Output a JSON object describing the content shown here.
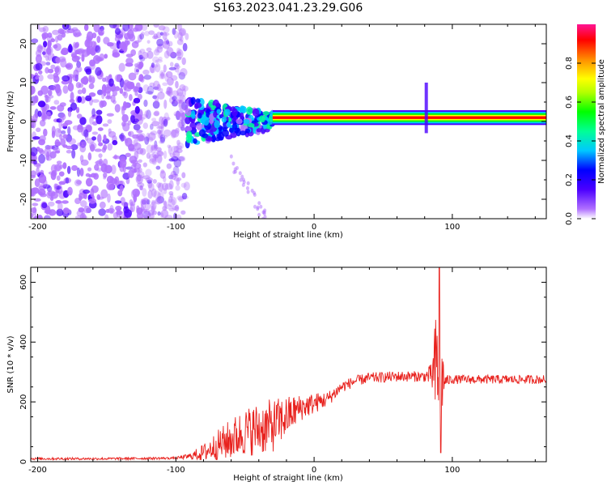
{
  "title": "S163.2023.041.23.29.G06",
  "chart_data": [
    {
      "type": "heatmap",
      "title": "S163.2023.041.23.29.G06",
      "xlabel": "Height of straight line (km)",
      "ylabel": "Frequency (Hz)",
      "xlim": [
        -205,
        168
      ],
      "ylim": [
        -25,
        25
      ],
      "xticks": [
        "-200",
        "-100",
        "0",
        "100"
      ],
      "yticks": [
        "-20",
        "-10",
        "0",
        "10",
        "20"
      ],
      "colorbar": {
        "label": "Normalized spectral amplitude",
        "range": [
          0,
          1
        ],
        "ticks": [
          "0.0",
          "0.2",
          "0.4",
          "0.6",
          "0.8"
        ],
        "colors": [
          "#ffffff",
          "#b070ff",
          "#4b00ff",
          "#0000ff",
          "#00c8ff",
          "#00ff96",
          "#00ff00",
          "#b4ff00",
          "#ffff00",
          "#ff8c00",
          "#ff0000",
          "#ff1493"
        ]
      },
      "regions": [
        {
          "name": "noise",
          "x_range": [
            -205,
            -92
          ],
          "f_range": [
            -25,
            25
          ],
          "amplitude": 0.15
        },
        {
          "name": "transition",
          "x_range": [
            -92,
            -30
          ],
          "f_range": [
            -6,
            6
          ],
          "amplitude": 0.3
        },
        {
          "name": "signal",
          "x_range": [
            -30,
            168
          ],
          "f_center": 1,
          "f_halfwidth": 1,
          "amplitude": 0.85
        }
      ],
      "grid": false
    },
    {
      "type": "line",
      "xlabel": "Height of straight line (km)",
      "ylabel": "SNR (10 * v/v)",
      "xlim": [
        -205,
        168
      ],
      "ylim": [
        0,
        650
      ],
      "xticks": [
        "-200",
        "-100",
        "0",
        "100"
      ],
      "yticks": [
        "0",
        "200",
        "400",
        "600"
      ],
      "color": "#e8211d",
      "series_envelope": {
        "x": [
          -205,
          -150,
          -100,
          -90,
          -80,
          -70,
          -60,
          -50,
          -40,
          -30,
          -20,
          -10,
          0,
          10,
          20,
          30,
          40,
          60,
          80,
          85,
          88,
          90,
          92,
          95,
          100,
          120,
          140,
          168
        ],
        "y": [
          10,
          10,
          12,
          18,
          30,
          55,
          75,
          100,
          110,
          120,
          150,
          180,
          195,
          210,
          250,
          270,
          280,
          285,
          285,
          290,
          300,
          320,
          280,
          270,
          275,
          275,
          275,
          275
        ],
        "noise": [
          4,
          4,
          4,
          10,
          30,
          50,
          70,
          80,
          90,
          90,
          70,
          45,
          35,
          25,
          20,
          18,
          18,
          18,
          18,
          40,
          200,
          300,
          150,
          20,
          15,
          15,
          15,
          15
        ]
      },
      "grid": false
    }
  ]
}
